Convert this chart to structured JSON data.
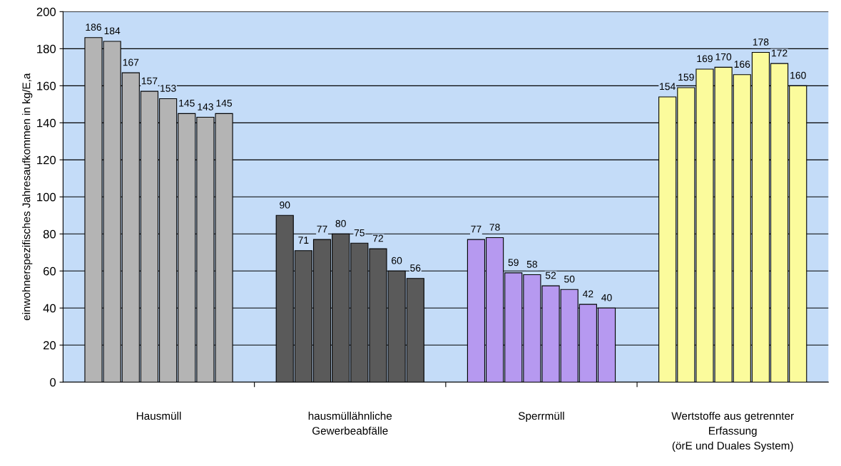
{
  "chart_data": {
    "type": "bar",
    "ylabel": "einwohnerspezifisches Jahresaufkommen in kg/E,a",
    "categories": [
      "Hausmüll",
      "hausmüllähnliche\nGewerbeabfälle",
      "Sperrmüll",
      "Wertstoffe aus getrennter\nErfassung\n(örE und Duales System)"
    ],
    "series": [
      {
        "colors": [
          "#b4b4b4",
          "#5a5a5a",
          "#b699f0",
          "#fbfb9c"
        ],
        "values": [
          186,
          90,
          77,
          154
        ]
      },
      {
        "colors": [
          "#b4b4b4",
          "#5a5a5a",
          "#b699f0",
          "#fbfb9c"
        ],
        "values": [
          184,
          71,
          78,
          159
        ]
      },
      {
        "colors": [
          "#b4b4b4",
          "#5a5a5a",
          "#b699f0",
          "#fbfb9c"
        ],
        "values": [
          167,
          77,
          59,
          169
        ]
      },
      {
        "colors": [
          "#b4b4b4",
          "#5a5a5a",
          "#b699f0",
          "#fbfb9c"
        ],
        "values": [
          157,
          80,
          58,
          170
        ]
      },
      {
        "colors": [
          "#b4b4b4",
          "#5a5a5a",
          "#b699f0",
          "#fbfb9c"
        ],
        "values": [
          153,
          75,
          52,
          166
        ]
      },
      {
        "colors": [
          "#b4b4b4",
          "#5a5a5a",
          "#b699f0",
          "#fbfb9c"
        ],
        "values": [
          145,
          72,
          50,
          178
        ]
      },
      {
        "colors": [
          "#b4b4b4",
          "#5a5a5a",
          "#b699f0",
          "#fbfb9c"
        ],
        "values": [
          143,
          60,
          42,
          172
        ]
      },
      {
        "colors": [
          "#b4b4b4",
          "#5a5a5a",
          "#b699f0",
          "#fbfb9c"
        ],
        "values": [
          145,
          56,
          40,
          160
        ]
      }
    ],
    "ylim": [
      0,
      200
    ],
    "yticks": [
      0,
      20,
      40,
      60,
      80,
      100,
      120,
      140,
      160,
      180,
      200
    ],
    "grid": "y",
    "data_labels": true
  }
}
